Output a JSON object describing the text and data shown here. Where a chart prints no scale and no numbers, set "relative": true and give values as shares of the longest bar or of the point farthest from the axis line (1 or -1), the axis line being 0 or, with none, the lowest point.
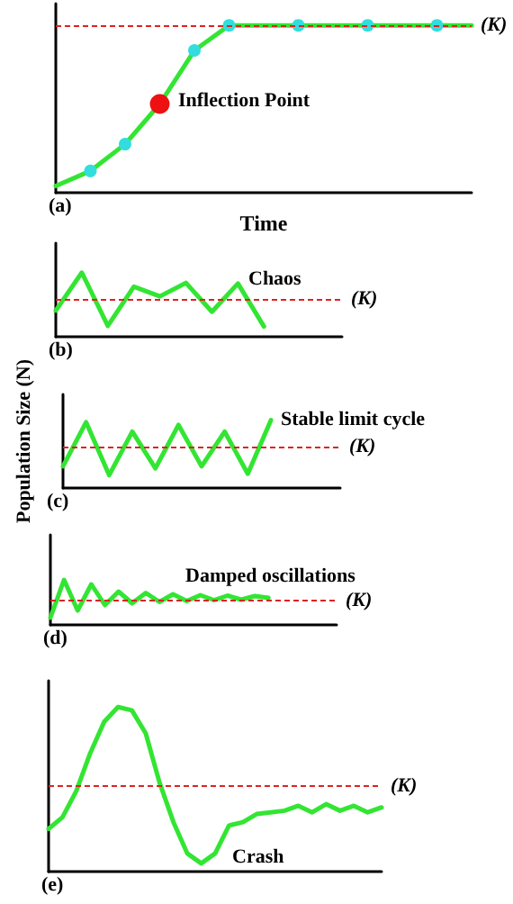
{
  "chart_data": [
    {
      "type": "line",
      "relative": true,
      "xlabel": "Time",
      "marker": "circle",
      "categories": [
        null,
        null,
        null,
        null,
        null,
        null,
        null,
        null,
        null,
        null,
        null,
        null,
        null
      ],
      "series": [
        {
          "color": "#33e533",
          "values": [
            0.04,
            0.13,
            0.29,
            0.53,
            0.85,
            1,
            1,
            1,
            1,
            1,
            1,
            1,
            1
          ],
          "colors": [
            null,
            "#33dddd",
            "#33dddd",
            "#ee1111",
            "#33dddd",
            "#33dddd",
            null,
            "#33dddd",
            null,
            "#33dddd",
            null,
            "#33dddd",
            null
          ]
        }
      ],
      "ref_lines": [
        {
          "axis": "y",
          "value": 1,
          "label": "(K)",
          "color": "#dd2222",
          "line_style": "dashed"
        }
      ],
      "annotations": [
        "(a)",
        "Inflection Point"
      ]
    },
    {
      "type": "line",
      "relative": true,
      "categories": [
        null,
        null,
        null,
        null,
        null,
        null,
        null,
        null,
        null,
        null,
        null,
        null
      ],
      "series": [
        {
          "color": "#33e533",
          "values": [
            0.41,
            1,
            0.17,
            0.78,
            0.63,
            0.84,
            0.39,
            0.83,
            0.16,
            null,
            null,
            null
          ]
        }
      ],
      "ref_lines": [
        {
          "axis": "y",
          "value": 0.59,
          "label": "(K)",
          "color": "#dd2222",
          "line_style": "dashed"
        }
      ],
      "annotations": [
        "(b)",
        "Chaos"
      ]
    },
    {
      "type": "line",
      "relative": true,
      "ylabel": "Population Size (N)",
      "categories": [
        null,
        null,
        null,
        null,
        null,
        null,
        null,
        null,
        null,
        null,
        null,
        null,
        null
      ],
      "series": [
        {
          "color": "#33e533",
          "values": [
            0.32,
            0.97,
            0.19,
            0.83,
            0.29,
            0.93,
            0.32,
            0.83,
            0.21,
            1,
            null,
            null,
            null
          ]
        }
      ],
      "ref_lines": [
        {
          "axis": "y",
          "value": 0.61,
          "label": "(K)",
          "color": "#dd2222",
          "line_style": "dashed"
        }
      ],
      "annotations": [
        "(c)",
        "Stable limit cycle"
      ]
    },
    {
      "type": "line",
      "relative": true,
      "categories": [
        null,
        null,
        null,
        null,
        null,
        null,
        null,
        null,
        null,
        null,
        null,
        null,
        null,
        null,
        null,
        null,
        null,
        null,
        null,
        null,
        null,
        null
      ],
      "series": [
        {
          "color": "#33e533",
          "values": [
            0.16,
            1,
            0.32,
            0.9,
            0.44,
            0.74,
            0.48,
            0.71,
            0.51,
            0.68,
            0.53,
            0.66,
            0.55,
            0.65,
            0.56,
            0.64,
            0.6,
            null,
            null,
            null,
            null,
            null
          ]
        }
      ],
      "ref_lines": [
        {
          "axis": "y",
          "value": 0.55,
          "label": "(K)",
          "color": "#dd2222",
          "line_style": "dashed"
        }
      ],
      "annotations": [
        "(d)",
        "Damped oscillations"
      ]
    },
    {
      "type": "line",
      "relative": true,
      "categories": [
        null,
        null,
        null,
        null,
        null,
        null,
        null,
        null,
        null,
        null,
        null,
        null,
        null,
        null,
        null,
        null,
        null,
        null,
        null,
        null,
        null,
        null,
        null,
        null,
        null
      ],
      "series": [
        {
          "color": "#33e533",
          "values": [
            0.26,
            0.33,
            0.49,
            0.72,
            0.91,
            1,
            0.98,
            0.84,
            0.54,
            0.3,
            0.11,
            0.05,
            0.11,
            0.28,
            0.3,
            0.35,
            0.36,
            0.37,
            0.4,
            0.36,
            0.41,
            0.37,
            0.4,
            0.36,
            0.39
          ]
        }
      ],
      "ref_lines": [
        {
          "axis": "y",
          "value": 0.52,
          "label": "(K)",
          "color": "#dd2222",
          "line_style": "dashed"
        }
      ],
      "annotations": [
        "(e)",
        "Crash"
      ]
    }
  ]
}
